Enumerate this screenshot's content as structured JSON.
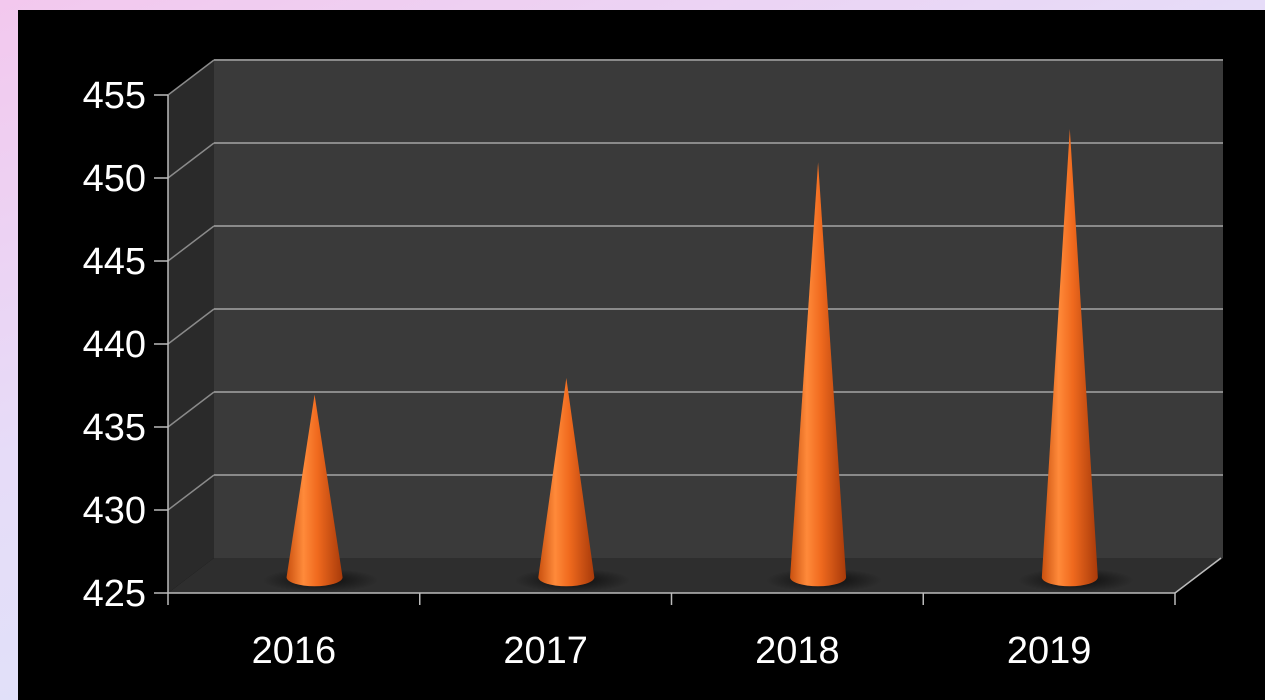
{
  "chart_data": {
    "type": "bar",
    "style": "3d-cone",
    "categories": [
      "2016",
      "2017",
      "2018",
      "2019"
    ],
    "series": [
      {
        "values": [
          436,
          437,
          450,
          452
        ]
      }
    ],
    "yticks": [
      "425",
      "430",
      "435",
      "440",
      "445",
      "450",
      "455"
    ],
    "ylim": [
      425,
      455
    ],
    "grid": true,
    "colors": {
      "background": "#000000",
      "wall": "#3a3a3a",
      "side_wall": "#2a2a2a",
      "floor": "#2e2e2e",
      "gridline": "#8a8a8a",
      "cone_light": "#ff8a3a",
      "cone_dark": "#b8420d",
      "text": "#ffffff"
    }
  }
}
